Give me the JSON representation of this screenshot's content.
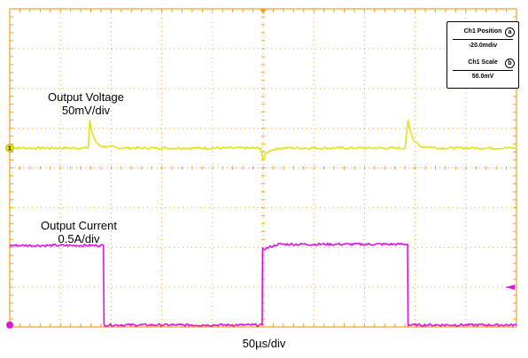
{
  "chart_data": {
    "type": "line",
    "title": "",
    "xlabel": "50µs/div",
    "ylabel": "",
    "divisions": {
      "x": 10,
      "y": 8
    },
    "xlim_div": [
      0,
      10
    ],
    "ylim_div": [
      0,
      8
    ],
    "grid": "dotted",
    "series": [
      {
        "name": "Output Voltage",
        "scale_label": "50mV/div",
        "color": "#e6e01a",
        "unit": "div",
        "x": [
          0,
          1.55,
          1.58,
          1.62,
          1.68,
          1.78,
          2.2,
          4.95,
          5.0,
          5.05,
          5.15,
          5.35,
          5.9,
          7.8,
          7.86,
          7.91,
          7.97,
          8.08,
          8.5,
          10.0
        ],
        "y": [
          4.5,
          4.5,
          5.2,
          4.9,
          4.7,
          4.55,
          4.5,
          4.5,
          4.2,
          4.35,
          4.45,
          4.5,
          4.5,
          4.5,
          5.2,
          4.9,
          4.7,
          4.55,
          4.5,
          4.5
        ]
      },
      {
        "name": "Output Current",
        "scale_label": "0.5A/div",
        "color": "#e012e0",
        "unit": "div",
        "x": [
          0,
          1.85,
          1.86,
          4.98,
          4.99,
          5.3,
          7.85,
          7.86,
          10.0
        ],
        "y": [
          2.05,
          2.05,
          0.05,
          0.05,
          1.95,
          2.08,
          2.08,
          0.05,
          0.05
        ]
      }
    ],
    "markers": {
      "ch1_ground_label": "1"
    }
  },
  "info_box": {
    "ch1_position_label": "Ch1 Position",
    "ch1_position_badge": "a",
    "ch1_position_value": "-20.0mdiv",
    "ch1_scale_label": "Ch1 Scale",
    "ch1_scale_badge": "b",
    "ch1_scale_value": "50.0mV"
  },
  "labels": {
    "voltage_name": "Output Voltage",
    "voltage_scale": "50mV/div",
    "current_name": "Output Current",
    "current_scale": "0.5A/div",
    "time_scale": "50µs/div"
  },
  "colors": {
    "grid_frame": "#f0a020",
    "voltage": "#e6e01a",
    "current": "#e012e0"
  }
}
